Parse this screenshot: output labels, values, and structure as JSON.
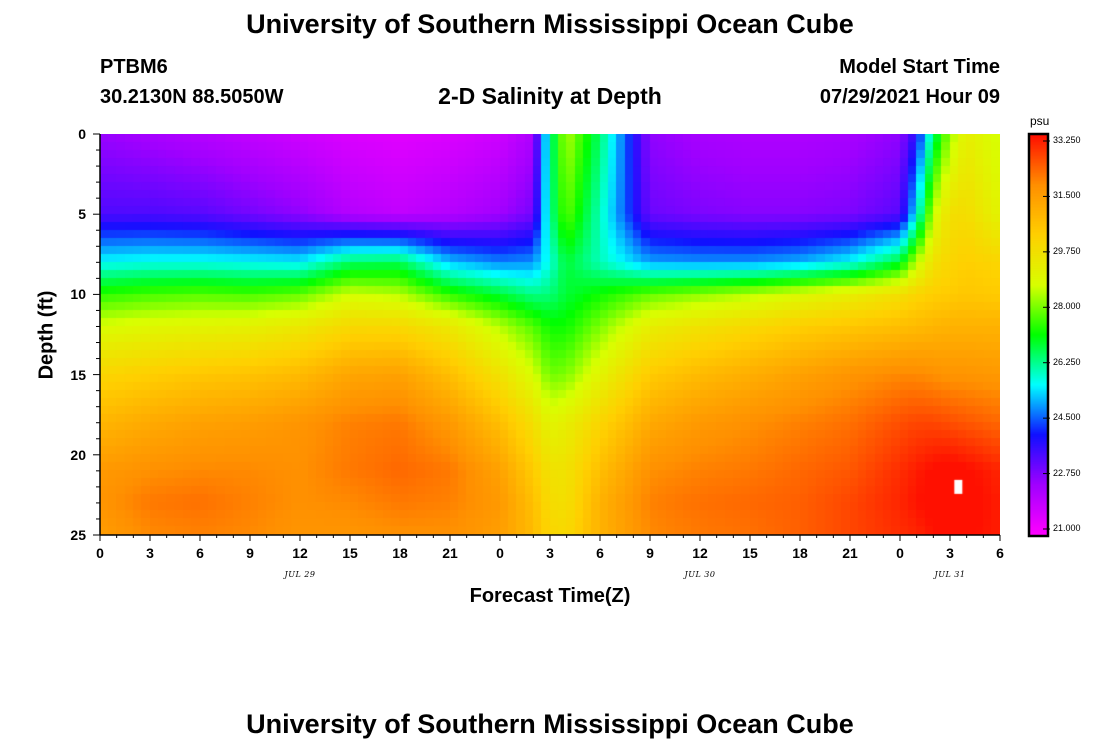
{
  "header": {
    "title_top": "University of Southern Mississippi Ocean Cube",
    "station_id": "PTBM6",
    "station_coords": "30.2130N  88.5050W",
    "plot_title": "2-D Salinity at Depth",
    "model_start_label": "Model Start Time",
    "model_start_value": "07/29/2021 Hour 09"
  },
  "footer": {
    "title_bottom": "University of Southern Mississippi Ocean Cube"
  },
  "chart_data": {
    "type": "heatmap",
    "title": "2-D Salinity at Depth",
    "xlabel": "Forecast Time(Z)",
    "ylabel": "Depth (ft)",
    "x_range_hours": [
      0,
      54
    ],
    "y_range_ft": [
      0,
      25
    ],
    "y_inverted": true,
    "x_tick_labels": [
      "0",
      "3",
      "6",
      "9",
      "12",
      "15",
      "18",
      "21",
      "0",
      "3",
      "6",
      "9",
      "12",
      "15",
      "18",
      "21",
      "0",
      "3",
      "6"
    ],
    "y_tick_labels": [
      "0",
      "5",
      "10",
      "15",
      "20",
      "25"
    ],
    "date_labels": [
      {
        "label": "JUL 29",
        "hour": 12
      },
      {
        "label": "JUL 30",
        "hour": 36
      },
      {
        "label": "JUL 31",
        "hour": 51
      }
    ],
    "colorbar": {
      "units": "psu",
      "min": 21.0,
      "max": 33.25,
      "tick_labels": [
        "33.250",
        "31.500",
        "29.750",
        "28.000",
        "26.250",
        "24.500",
        "22.750",
        "21.000"
      ],
      "colors": [
        "#ff00ff",
        "#a000ff",
        "#1010ff",
        "#00ffff",
        "#00ff00",
        "#d8ff00",
        "#ffd000",
        "#ff9000",
        "#ff1000"
      ]
    },
    "depths_ft": [
      0,
      5,
      8,
      10,
      12,
      15,
      18,
      21,
      23,
      25
    ],
    "times_h": [
      0,
      3,
      6,
      9,
      12,
      15,
      18,
      21,
      24,
      26,
      27,
      28,
      30,
      33,
      36,
      39,
      42,
      45,
      48,
      49,
      50,
      51,
      52,
      54
    ],
    "salinity_psu": [
      [
        22.6,
        22.4,
        22.2,
        22.0,
        21.8,
        21.6,
        21.5,
        21.6,
        21.8,
        22.3,
        26.2,
        28.4,
        26.5,
        22.7,
        22.4,
        22.3,
        22.3,
        22.4,
        22.7,
        23.8,
        26.4,
        28.2,
        29.2,
        28.6
      ],
      [
        23.4,
        23.4,
        23.3,
        23.0,
        22.7,
        22.2,
        22.0,
        22.2,
        22.5,
        23.0,
        26.2,
        27.8,
        26.0,
        23.1,
        22.9,
        22.8,
        22.8,
        22.9,
        23.3,
        25.5,
        28.5,
        29.7,
        29.8,
        29.0
      ],
      [
        25.6,
        25.7,
        25.7,
        25.6,
        25.5,
        26.5,
        26.6,
        25.2,
        24.8,
        24.9,
        25.8,
        26.8,
        26.0,
        25.0,
        24.9,
        24.9,
        25.1,
        25.6,
        26.8,
        28.4,
        29.6,
        30.0,
        30.2,
        30.0
      ],
      [
        27.4,
        27.6,
        27.7,
        27.6,
        27.8,
        28.6,
        28.4,
        27.4,
        26.8,
        26.3,
        26.4,
        26.8,
        27.2,
        27.8,
        28.1,
        28.4,
        28.8,
        29.2,
        29.7,
        30.0,
        30.2,
        30.3,
        30.4,
        30.3
      ],
      [
        28.7,
        28.9,
        29.0,
        29.1,
        29.4,
        29.9,
        29.9,
        29.4,
        28.4,
        27.7,
        27.2,
        27.2,
        28.0,
        29.2,
        29.6,
        29.9,
        30.2,
        30.4,
        30.6,
        30.7,
        30.8,
        30.9,
        30.9,
        30.9
      ],
      [
        30.0,
        30.2,
        30.4,
        30.5,
        30.7,
        31.2,
        31.3,
        30.6,
        29.6,
        28.7,
        27.9,
        28.0,
        29.0,
        30.3,
        30.7,
        31.0,
        31.3,
        31.6,
        31.8,
        31.8,
        31.7,
        31.6,
        31.6,
        31.5
      ],
      [
        30.8,
        31.1,
        31.3,
        31.4,
        31.6,
        31.9,
        32.0,
        31.5,
        30.6,
        29.7,
        29.0,
        29.2,
        30.0,
        31.1,
        31.5,
        31.7,
        31.9,
        32.1,
        32.5,
        32.6,
        32.6,
        32.5,
        32.4,
        32.2
      ],
      [
        31.5,
        31.7,
        31.8,
        31.8,
        31.7,
        32.0,
        32.2,
        32.0,
        31.3,
        30.3,
        29.6,
        29.6,
        30.6,
        31.7,
        31.9,
        32.0,
        32.2,
        32.4,
        32.9,
        33.1,
        33.3,
        33.4,
        33.3,
        33.0
      ],
      [
        31.6,
        32.0,
        32.1,
        31.9,
        31.7,
        31.8,
        32.0,
        31.9,
        31.5,
        30.6,
        29.8,
        29.7,
        30.9,
        31.9,
        32.1,
        32.2,
        32.3,
        32.6,
        33.0,
        33.2,
        33.4,
        33.5,
        33.4,
        33.1
      ],
      [
        31.4,
        31.8,
        31.9,
        31.8,
        31.6,
        31.6,
        31.7,
        31.7,
        31.4,
        30.7,
        30.0,
        29.9,
        30.9,
        31.8,
        32.0,
        32.1,
        32.3,
        32.6,
        32.9,
        33.0,
        33.2,
        33.4,
        33.3,
        33.1
      ]
    ],
    "marker": {
      "hour": 51.5,
      "depth_ft": 22,
      "color": "#ffffff"
    }
  }
}
